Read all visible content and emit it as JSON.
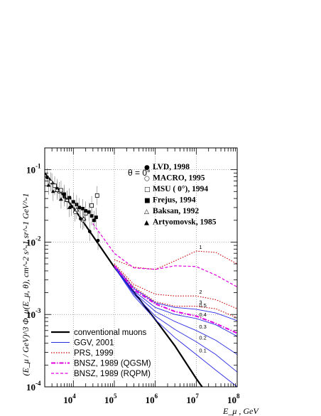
{
  "chart_data": {
    "type": "line",
    "title": "",
    "xlabel": "E_μ , GeV",
    "ylabel": "(E_μ / GeV)^3 Φ_μ(E_μ, θ), cm^-2 s^-1 sr^-1 GeV^-1",
    "x_scale": "log",
    "y_scale": "log",
    "xlim": [
      2000,
      100000000
    ],
    "ylim": [
      0.0001,
      0.2
    ],
    "grid": "dotted",
    "annotation": "θ = 0°",
    "x_ticks": [
      {
        "base": "10",
        "exp": "4",
        "value": 10000
      },
      {
        "base": "10",
        "exp": "5",
        "value": 100000
      },
      {
        "base": "10",
        "exp": "6",
        "value": 1000000
      },
      {
        "base": "10",
        "exp": "7",
        "value": 10000000
      },
      {
        "base": "10",
        "exp": "8",
        "value": 100000000
      }
    ],
    "y_ticks": [
      {
        "base": "10",
        "exp": "-1",
        "value": 0.1
      },
      {
        "base": "10",
        "exp": "-2",
        "value": 0.01
      },
      {
        "base": "10",
        "exp": "-3",
        "value": 0.001
      },
      {
        "base": "10",
        "exp": "-4",
        "value": 0.0001
      }
    ],
    "legend_experiments": [
      {
        "label": "LVD, 1998",
        "symbol": "filled-circle",
        "glyph": "●"
      },
      {
        "label": "MACRO, 1995",
        "symbol": "open-circle",
        "glyph": "○"
      },
      {
        "label": "MSU ( 0°), 1994",
        "symbol": "open-square",
        "glyph": "□"
      },
      {
        "label": "Frejus, 1994",
        "symbol": "filled-square",
        "glyph": "■"
      },
      {
        "label": "Baksan, 1992",
        "symbol": "open-triangle",
        "glyph": "△"
      },
      {
        "label": "Artyomovsk, 1985",
        "symbol": "filled-triangle",
        "glyph": "▲"
      }
    ],
    "legend_models": [
      {
        "label": "conventional muons",
        "color": "#000000",
        "style": "solid-thick"
      },
      {
        "label": "GGV, 2001",
        "color": "#2a2ae6",
        "style": "solid"
      },
      {
        "label": "PRS, 1999",
        "color": "#cc0000",
        "style": "dotted"
      },
      {
        "label": "BNSZ, 1989 (QGSM)",
        "color": "#e000e0",
        "style": "dash-dot-thick"
      },
      {
        "label": "BNSZ, 1989 (RQPM)",
        "color": "#e000e0",
        "style": "dashed"
      }
    ],
    "series": [
      {
        "name": "conventional muons",
        "color": "#000000",
        "points": [
          [
            2000,
            0.09
          ],
          [
            10000,
            0.03
          ],
          [
            100000,
            0.0045
          ],
          [
            1000000,
            0.00085
          ],
          [
            3000000,
            0.00037
          ],
          [
            10000000,
            0.00013
          ],
          [
            20000000,
            7.5e-05
          ]
        ]
      },
      {
        "name": "PRS, 1999",
        "color": "#cc0000",
        "curve_labels": [
          "1",
          "2",
          "3"
        ],
        "curves": [
          [
            [
              100000,
              0.0057
            ],
            [
              300000,
              0.0045
            ],
            [
              1000000,
              0.0042
            ],
            [
              3000000,
              0.0055
            ],
            [
              10000000,
              0.0075
            ],
            [
              30000000,
              0.0072
            ],
            [
              100000000,
              0.005
            ]
          ],
          [
            [
              100000,
              0.005
            ],
            [
              300000,
              0.0026
            ],
            [
              1000000,
              0.0019
            ],
            [
              3000000,
              0.0018
            ],
            [
              10000000,
              0.0018
            ],
            [
              30000000,
              0.0016
            ],
            [
              100000000,
              0.0012
            ]
          ],
          [
            [
              100000,
              0.0048
            ],
            [
              300000,
              0.0024
            ],
            [
              1000000,
              0.0015
            ],
            [
              3000000,
              0.0013
            ],
            [
              10000000,
              0.0013
            ],
            [
              30000000,
              0.0012
            ],
            [
              100000000,
              0.0009
            ]
          ]
        ]
      },
      {
        "name": "GGV, 2001",
        "color": "#2a2ae6",
        "curve_labels": [
          "0.5",
          "0.4",
          "0.3",
          "0.2",
          "0.1"
        ],
        "curves": [
          [
            [
              100000,
              0.0048
            ],
            [
              300000,
              0.0023
            ],
            [
              1000000,
              0.00145
            ],
            [
              3000000,
              0.00125
            ],
            [
              10000000,
              0.00118
            ],
            [
              30000000,
              0.00105
            ],
            [
              100000000,
              0.00082
            ]
          ],
          [
            [
              100000,
              0.0047
            ],
            [
              300000,
              0.0021
            ],
            [
              1000000,
              0.00125
            ],
            [
              3000000,
              0.001
            ],
            [
              10000000,
              0.00088
            ],
            [
              30000000,
              0.00072
            ],
            [
              100000000,
              0.0005
            ]
          ],
          [
            [
              100000,
              0.0046
            ],
            [
              300000,
              0.002
            ],
            [
              1000000,
              0.0011
            ],
            [
              3000000,
              0.0008
            ],
            [
              10000000,
              0.0006
            ],
            [
              30000000,
              0.00044
            ],
            [
              100000000,
              0.00028
            ]
          ],
          [
            [
              100000,
              0.0045
            ],
            [
              300000,
              0.0019
            ],
            [
              1000000,
              0.00095
            ],
            [
              3000000,
              0.00062
            ],
            [
              10000000,
              0.00042
            ],
            [
              30000000,
              0.00028
            ],
            [
              100000000,
              0.00016
            ]
          ],
          [
            [
              100000,
              0.0045
            ],
            [
              300000,
              0.0018
            ],
            [
              1000000,
              0.00085
            ],
            [
              3000000,
              0.00048
            ],
            [
              10000000,
              0.00028
            ],
            [
              30000000,
              0.00017
            ],
            [
              100000000,
              0.0001
            ]
          ]
        ]
      },
      {
        "name": "BNSZ, 1989 (QGSM)",
        "color": "#e000e0",
        "points": [
          [
            100000,
            0.0047
          ],
          [
            300000,
            0.0022
          ],
          [
            1000000,
            0.0014
          ],
          [
            3000000,
            0.0011
          ],
          [
            10000000,
            0.00095
          ],
          [
            30000000,
            0.00075
          ],
          [
            100000000,
            0.00055
          ]
        ]
      },
      {
        "name": "BNSZ, 1989 (RQPM)",
        "color": "#e000e0",
        "points": [
          [
            30000,
            0.018
          ],
          [
            100000,
            0.007
          ],
          [
            300000,
            0.0044
          ],
          [
            1000000,
            0.0042
          ],
          [
            3000000,
            0.0047
          ],
          [
            10000000,
            0.0046
          ],
          [
            30000000,
            0.0035
          ],
          [
            100000000,
            0.0024
          ]
        ]
      }
    ],
    "experimental_points": [
      {
        "set": "filled-circle",
        "points": [
          [
            2300,
            0.078
          ],
          [
            3000,
            0.066
          ],
          [
            4000,
            0.055
          ],
          [
            6000,
            0.042
          ],
          [
            9000,
            0.031
          ],
          [
            15000,
            0.021
          ],
          [
            25000,
            0.014
          ],
          [
            40000,
            0.0105
          ]
        ]
      },
      {
        "set": "open-circle",
        "points": [
          [
            2800,
            0.068
          ],
          [
            4500,
            0.05
          ],
          [
            7000,
            0.038
          ],
          [
            11000,
            0.026
          ],
          [
            17000,
            0.02
          ]
        ]
      },
      {
        "set": "open-square",
        "points": [
          [
            3500,
            0.06
          ],
          [
            5000,
            0.052
          ],
          [
            20000,
            0.025
          ],
          [
            28000,
            0.032
          ],
          [
            38000,
            0.044
          ]
        ]
      },
      {
        "set": "filled-square",
        "points": [
          [
            6000,
            0.046
          ],
          [
            8000,
            0.041
          ],
          [
            10000,
            0.036
          ],
          [
            12000,
            0.033
          ],
          [
            14000,
            0.03
          ],
          [
            17000,
            0.029
          ],
          [
            20000,
            0.027
          ],
          [
            24000,
            0.026
          ],
          [
            28000,
            0.023
          ],
          [
            32000,
            0.02
          ],
          [
            36000,
            0.022
          ]
        ]
      },
      {
        "set": "open-triangle",
        "points": [
          [
            4000,
            0.052
          ],
          [
            7000,
            0.038
          ],
          [
            12000,
            0.028
          ],
          [
            18000,
            0.021
          ]
        ]
      },
      {
        "set": "filled-triangle",
        "points": [
          [
            2500,
            0.061
          ],
          [
            3200,
            0.05
          ],
          [
            5000,
            0.039
          ],
          [
            8000,
            0.03
          ]
        ]
      }
    ]
  }
}
